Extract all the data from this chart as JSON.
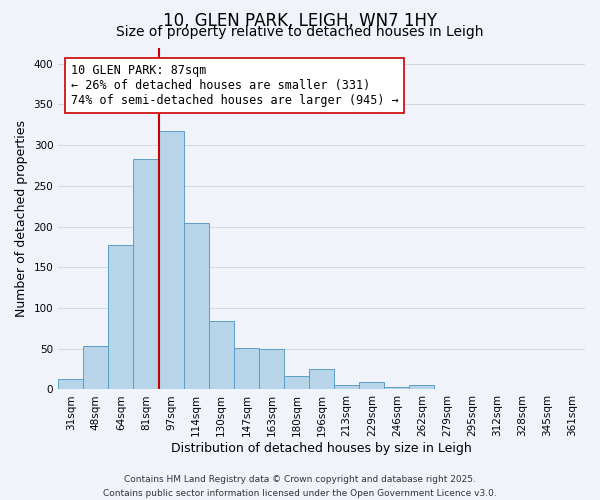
{
  "title": "10, GLEN PARK, LEIGH, WN7 1HY",
  "subtitle": "Size of property relative to detached houses in Leigh",
  "xlabel": "Distribution of detached houses by size in Leigh",
  "ylabel": "Number of detached properties",
  "categories": [
    "31sqm",
    "48sqm",
    "64sqm",
    "81sqm",
    "97sqm",
    "114sqm",
    "130sqm",
    "147sqm",
    "163sqm",
    "180sqm",
    "196sqm",
    "213sqm",
    "229sqm",
    "246sqm",
    "262sqm",
    "279sqm",
    "295sqm",
    "312sqm",
    "328sqm",
    "345sqm",
    "361sqm"
  ],
  "values": [
    13,
    53,
    178,
    283,
    317,
    204,
    84,
    51,
    50,
    16,
    25,
    5,
    9,
    3,
    5,
    1,
    1,
    0,
    0,
    0,
    0
  ],
  "bar_color": "#b8d4e8",
  "bar_edge_color": "#5a9ec9",
  "vline_x": 3.5,
  "vline_color": "#cc0000",
  "annotation_line1": "10 GLEN PARK: 87sqm",
  "annotation_line2": "← 26% of detached houses are smaller (331)",
  "annotation_line3": "74% of semi-detached houses are larger (945) →",
  "annotation_box_edge": "#cc0000",
  "annotation_box_bg": "#ffffff",
  "ylim": [
    0,
    420
  ],
  "yticks": [
    0,
    50,
    100,
    150,
    200,
    250,
    300,
    350,
    400
  ],
  "grid_color": "#d0d8e8",
  "background_color": "#f0f4fa",
  "footer_line1": "Contains HM Land Registry data © Crown copyright and database right 2025.",
  "footer_line2": "Contains public sector information licensed under the Open Government Licence v3.0.",
  "title_fontsize": 12,
  "subtitle_fontsize": 10,
  "label_fontsize": 9,
  "tick_fontsize": 7.5,
  "annotation_fontsize": 8.5,
  "footer_fontsize": 6.5
}
